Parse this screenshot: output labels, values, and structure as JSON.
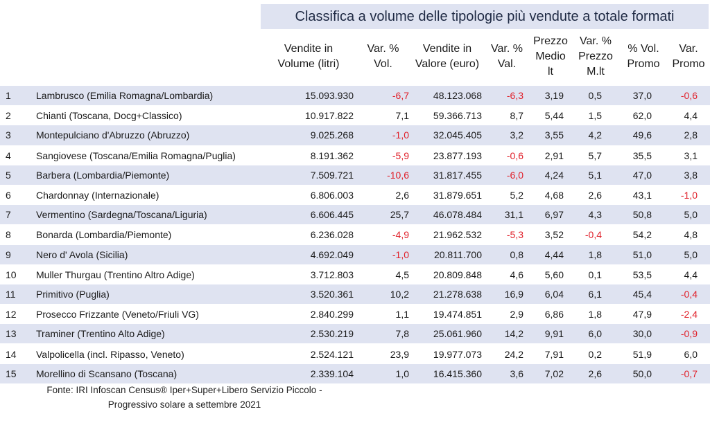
{
  "title": "Classifica a volume delle tipologie più vendute a totale formati",
  "headers": {
    "vol": [
      "Vendite in",
      "Volume (litri)"
    ],
    "varvol": [
      "Var. %",
      "Vol."
    ],
    "val": [
      "Vendite in",
      "Valore (euro)"
    ],
    "varval": [
      "Var. %",
      "Val."
    ],
    "prezzo": [
      "Prezzo",
      "Medio",
      "lt"
    ],
    "varprezzo": [
      "Var. %",
      "Prezzo",
      "M.lt"
    ],
    "promo": [
      "% Vol.",
      "Promo"
    ],
    "varpromo": [
      "Var.",
      "Promo"
    ]
  },
  "rows": [
    {
      "rank": "1",
      "name": "Lambrusco (Emilia Romagna/Lombardia)",
      "vol": "15.093.930",
      "varvol": "-6,7",
      "val": "48.123.068",
      "varval": "-6,3",
      "prezzo": "3,19",
      "varprezzo": "0,5",
      "promo": "37,0",
      "varpromo": "-0,6"
    },
    {
      "rank": "2",
      "name": "Chianti (Toscana, Docg+Classico)",
      "vol": "10.917.822",
      "varvol": "7,1",
      "val": "59.366.713",
      "varval": "8,7",
      "prezzo": "5,44",
      "varprezzo": "1,5",
      "promo": "62,0",
      "varpromo": "4,4"
    },
    {
      "rank": "3",
      "name": "Montepulciano d'Abruzzo (Abruzzo)",
      "vol": "9.025.268",
      "varvol": "-1,0",
      "val": "32.045.405",
      "varval": "3,2",
      "prezzo": "3,55",
      "varprezzo": "4,2",
      "promo": "49,6",
      "varpromo": "2,8"
    },
    {
      "rank": "4",
      "name": "Sangiovese (Toscana/Emilia Romagna/Puglia)",
      "vol": "8.191.362",
      "varvol": "-5,9",
      "val": "23.877.193",
      "varval": "-0,6",
      "prezzo": "2,91",
      "varprezzo": "5,7",
      "promo": "35,5",
      "varpromo": "3,1"
    },
    {
      "rank": "5",
      "name": "Barbera (Lombardia/Piemonte)",
      "vol": "7.509.721",
      "varvol": "-10,6",
      "val": "31.817.455",
      "varval": "-6,0",
      "prezzo": "4,24",
      "varprezzo": "5,1",
      "promo": "47,0",
      "varpromo": "3,8"
    },
    {
      "rank": "6",
      "name": "Chardonnay (Internazionale)",
      "vol": "6.806.003",
      "varvol": "2,6",
      "val": "31.879.651",
      "varval": "5,2",
      "prezzo": "4,68",
      "varprezzo": "2,6",
      "promo": "43,1",
      "varpromo": "-1,0"
    },
    {
      "rank": "7",
      "name": "Vermentino (Sardegna/Toscana/Liguria)",
      "vol": "6.606.445",
      "varvol": "25,7",
      "val": "46.078.484",
      "varval": "31,1",
      "prezzo": "6,97",
      "varprezzo": "4,3",
      "promo": "50,8",
      "varpromo": "5,0"
    },
    {
      "rank": "8",
      "name": "Bonarda (Lombardia/Piemonte)",
      "vol": "6.236.028",
      "varvol": "-4,9",
      "val": "21.962.532",
      "varval": "-5,3",
      "prezzo": "3,52",
      "varprezzo": "-0,4",
      "promo": "54,2",
      "varpromo": "4,8"
    },
    {
      "rank": "9",
      "name": "Nero d' Avola (Sicilia)",
      "vol": "4.692.049",
      "varvol": "-1,0",
      "val": "20.811.700",
      "varval": "0,8",
      "prezzo": "4,44",
      "varprezzo": "1,8",
      "promo": "51,0",
      "varpromo": "5,0"
    },
    {
      "rank": "10",
      "name": "Muller Thurgau (Trentino Altro Adige)",
      "vol": "3.712.803",
      "varvol": "4,5",
      "val": "20.809.848",
      "varval": "4,6",
      "prezzo": "5,60",
      "varprezzo": "0,1",
      "promo": "53,5",
      "varpromo": "4,4"
    },
    {
      "rank": "11",
      "name": "Primitivo (Puglia)",
      "vol": "3.520.361",
      "varvol": "10,2",
      "val": "21.278.638",
      "varval": "16,9",
      "prezzo": "6,04",
      "varprezzo": "6,1",
      "promo": "45,4",
      "varpromo": "-0,4"
    },
    {
      "rank": "12",
      "name": "Prosecco Frizzante (Veneto/Friuli VG)",
      "vol": "2.840.299",
      "varvol": "1,1",
      "val": "19.474.851",
      "varval": "2,9",
      "prezzo": "6,86",
      "varprezzo": "1,8",
      "promo": "47,9",
      "varpromo": "-2,4"
    },
    {
      "rank": "13",
      "name": "Traminer (Trentino Alto Adige)",
      "vol": "2.530.219",
      "varvol": "7,8",
      "val": "25.061.960",
      "varval": "14,2",
      "prezzo": "9,91",
      "varprezzo": "6,0",
      "promo": "30,0",
      "varpromo": "-0,9"
    },
    {
      "rank": "14",
      "name": "Valpolicella (incl. Ripasso, Veneto)",
      "vol": "2.524.121",
      "varvol": "23,9",
      "val": "19.977.073",
      "varval": "24,2",
      "prezzo": "7,91",
      "varprezzo": "0,2",
      "promo": "51,9",
      "varpromo": "6,0"
    },
    {
      "rank": "15",
      "name": "Morellino di Scansano (Toscana)",
      "vol": "2.339.104",
      "varvol": "1,0",
      "val": "16.415.360",
      "varval": "3,6",
      "prezzo": "7,02",
      "varprezzo": "2,6",
      "promo": "50,0",
      "varpromo": "-0,7"
    }
  ],
  "source": [
    "Fonte: IRI Infoscan Census® Iper+Super+Libero Servizio Piccolo -",
    "Progressivo solare a settembre 2021"
  ],
  "colors": {
    "band": "#dfe3f1",
    "negative": "#e0202a",
    "title_text": "#1f2a44"
  }
}
